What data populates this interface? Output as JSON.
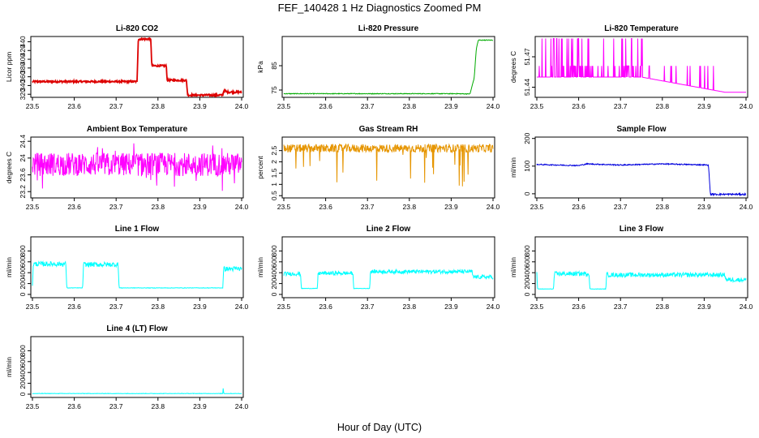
{
  "figure": {
    "title": "FEF_140428  1 Hz Diagnostics Zoomed PM",
    "xlabel": "Hour of Day (UTC)"
  },
  "chart_data": [
    {
      "type": "line",
      "title": "Li-820 CO2",
      "ylabel": "Licor ppm",
      "xlim": [
        23.5,
        24.0
      ],
      "ylim": [
        313,
        452
      ],
      "xticks": [
        "23.5",
        "23.6",
        "23.7",
        "23.8",
        "23.9",
        "24.0"
      ],
      "yticks": [
        320,
        340,
        360,
        380,
        400,
        420,
        440
      ],
      "color": "#dd0000",
      "series": [
        {
          "x": [
            23.5,
            23.75,
            23.753,
            23.783,
            23.785,
            23.82,
            23.822,
            23.868,
            23.871,
            23.955,
            23.957,
            23.962,
            23.964,
            24.0
          ],
          "y": [
            349,
            349,
            446,
            446,
            385,
            385,
            352,
            352,
            318,
            318,
            328,
            328,
            325,
            325
          ]
        }
      ]
    },
    {
      "type": "line",
      "title": "Li-820 Pressure",
      "ylabel": "kPa",
      "xlim": [
        23.5,
        24.0
      ],
      "ylim": [
        72,
        97
      ],
      "xticks": [
        "23.5",
        "23.6",
        "23.7",
        "23.8",
        "23.9",
        "24.0"
      ],
      "yticks": [
        75,
        85
      ],
      "color": "#00aa00",
      "series": [
        {
          "x": [
            23.5,
            23.91,
            23.945,
            23.955,
            23.96,
            23.965,
            24.0
          ],
          "y": [
            73.5,
            73.5,
            73.4,
            80,
            92,
            95.5,
            95.5
          ]
        }
      ]
    },
    {
      "type": "line",
      "title": "Li-820 Temperature",
      "ylabel": "degrees C",
      "xlim": [
        23.5,
        24.0
      ],
      "ylim": [
        51.43,
        51.49
      ],
      "xticks": [
        "23.5",
        "23.6",
        "23.7",
        "23.8",
        "23.9",
        "24.0"
      ],
      "yticks": [
        51.44,
        51.47
      ],
      "color": "#ff00ff",
      "series": [
        {
          "x": [
            23.5,
            23.75,
            23.95,
            24.0
          ],
          "y": [
            51.45,
            51.45,
            51.435,
            51.435
          ]
        }
      ]
    },
    {
      "type": "line",
      "title": "Ambient Box Temperature",
      "ylabel": "degrees C",
      "xlim": [
        23.5,
        24.0
      ],
      "ylim": [
        23.05,
        24.5
      ],
      "xticks": [
        "23.5",
        "23.6",
        "23.7",
        "23.8",
        "23.9",
        "24.0"
      ],
      "yticks": [
        23.2,
        23.6,
        24.0,
        24.4
      ],
      "color": "#ff00ff",
      "series": [
        {
          "x": [
            23.5,
            24.0
          ],
          "y": [
            23.85,
            23.85
          ]
        }
      ]
    },
    {
      "type": "line",
      "title": "Gas Stream RH",
      "ylabel": "percent",
      "xlim": [
        23.5,
        24.0
      ],
      "ylim": [
        0.4,
        3.1
      ],
      "xticks": [
        "23.5",
        "23.6",
        "23.7",
        "23.8",
        "23.9",
        "24.0"
      ],
      "yticks": [
        0.5,
        1.0,
        1.5,
        2.0,
        2.5
      ],
      "color": "#e69500",
      "series": [
        {
          "x": [
            23.5,
            24.0
          ],
          "y": [
            2.6,
            2.6
          ]
        }
      ]
    },
    {
      "type": "line",
      "title": "Sample Flow",
      "ylabel": "ml/min",
      "xlim": [
        23.5,
        24.0
      ],
      "ylim": [
        -15,
        205
      ],
      "xticks": [
        "23.5",
        "23.6",
        "23.7",
        "23.8",
        "23.9",
        "24.0"
      ],
      "yticks": [
        0,
        100,
        200
      ],
      "color": "#0000dd",
      "series": [
        {
          "x": [
            23.5,
            23.6,
            23.62,
            23.7,
            23.8,
            23.91,
            23.915,
            24.0
          ],
          "y": [
            106,
            102,
            108,
            104,
            108,
            104,
            -2,
            -2
          ]
        }
      ]
    },
    {
      "type": "line",
      "title": "Line 1 Flow",
      "ylabel": "ml/min",
      "xlim": [
        23.5,
        24.0
      ],
      "ylim": [
        -60,
        1060
      ],
      "xticks": [
        "23.5",
        "23.6",
        "23.7",
        "23.8",
        "23.9",
        "24.0"
      ],
      "yticks": [
        0,
        200,
        400,
        600,
        800
      ],
      "color": "#00ffff",
      "series": [
        {
          "x": [
            23.5,
            23.502,
            23.58,
            23.582,
            23.62,
            23.622,
            23.705,
            23.707,
            23.955,
            23.957,
            24.0
          ],
          "y": [
            160,
            560,
            560,
            120,
            120,
            550,
            550,
            120,
            120,
            470,
            470
          ]
        }
      ]
    },
    {
      "type": "line",
      "title": "Line 2 Flow",
      "ylabel": "ml/min",
      "xlim": [
        23.5,
        24.0
      ],
      "ylim": [
        -60,
        1060
      ],
      "xticks": [
        "23.5",
        "23.6",
        "23.7",
        "23.8",
        "23.9",
        "24.0"
      ],
      "yticks": [
        0,
        200,
        400,
        600,
        800
      ],
      "color": "#00ffff",
      "series": [
        {
          "x": [
            23.5,
            23.54,
            23.542,
            23.58,
            23.582,
            23.665,
            23.667,
            23.705,
            23.707,
            23.95,
            23.952,
            24.0
          ],
          "y": [
            380,
            380,
            110,
            110,
            390,
            390,
            110,
            110,
            420,
            420,
            320,
            320
          ]
        }
      ]
    },
    {
      "type": "line",
      "title": "Line 3 Flow",
      "ylabel": "ml/min",
      "xlim": [
        23.5,
        24.0
      ],
      "ylim": [
        -60,
        1060
      ],
      "xticks": [
        "23.5",
        "23.6",
        "23.7",
        "23.8",
        "23.9",
        "24.0"
      ],
      "yticks": [
        0,
        200,
        400,
        600,
        800
      ],
      "color": "#00ffff",
      "series": [
        {
          "x": [
            23.5,
            23.502,
            23.54,
            23.542,
            23.625,
            23.627,
            23.665,
            23.667,
            23.95,
            23.952,
            24.0
          ],
          "y": [
            380,
            100,
            100,
            380,
            380,
            100,
            100,
            360,
            360,
            270,
            270
          ]
        }
      ]
    },
    {
      "type": "line",
      "title": "Line 4 (LT) Flow",
      "ylabel": "ml/min",
      "xlim": [
        23.5,
        24.0
      ],
      "ylim": [
        -60,
        1060
      ],
      "xticks": [
        "23.5",
        "23.6",
        "23.7",
        "23.8",
        "23.9",
        "24.0"
      ],
      "yticks": [
        0,
        200,
        400,
        600,
        800
      ],
      "color": "#00ffff",
      "series": [
        {
          "x": [
            23.5,
            23.955,
            23.956,
            23.957,
            24.0
          ],
          "y": [
            12,
            12,
            140,
            12,
            12
          ]
        }
      ]
    }
  ]
}
